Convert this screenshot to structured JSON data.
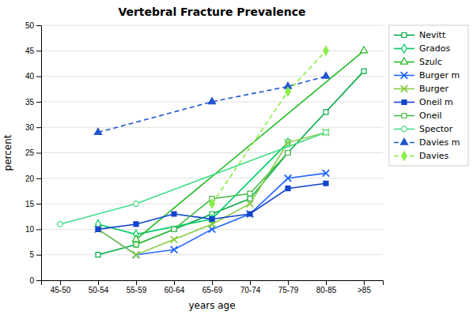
{
  "chart_data": {
    "type": "line",
    "title": "Vertebral Fracture Prevalence",
    "x_label": "years age",
    "y_label": "percent",
    "categories": [
      "45-50",
      "50-54",
      "55-59",
      "60-64",
      "65-69",
      "70-74",
      "75-79",
      "80-85",
      ">85"
    ],
    "ylim": [
      0,
      50
    ],
    "yticks": [
      0,
      5,
      10,
      15,
      20,
      25,
      30,
      35,
      40,
      45,
      50
    ],
    "grid": true,
    "legend": "right",
    "series": [
      {
        "name": "Nevitt",
        "color": "#00aa44",
        "marker": "square-open",
        "line_style": "solid",
        "values": [
          null,
          5,
          7,
          10,
          13,
          16,
          25,
          33,
          41
        ]
      },
      {
        "name": "Grados",
        "color": "#00cc66",
        "marker": "diamond-open",
        "line_style": "solid",
        "values": [
          null,
          11,
          9,
          null,
          12,
          null,
          27,
          null,
          null
        ]
      },
      {
        "name": "Szulc",
        "color": "#22bb22",
        "marker": "triangle-open",
        "line_style": "solid",
        "values": [
          null,
          null,
          8,
          null,
          null,
          null,
          null,
          null,
          45
        ]
      },
      {
        "name": "Burger m",
        "color": "#2266ff",
        "marker": "x",
        "line_style": "solid",
        "values": [
          null,
          10,
          5,
          6,
          10,
          13,
          20,
          21,
          null
        ]
      },
      {
        "name": "Burger",
        "color": "#88cc44",
        "marker": "x",
        "line_style": "solid",
        "values": [
          null,
          10,
          5,
          8,
          11,
          15,
          27,
          29,
          null
        ]
      },
      {
        "name": "Oneil m",
        "color": "#1144cc",
        "marker": "square",
        "line_style": "solid",
        "values": [
          null,
          10,
          11,
          13,
          12,
          13,
          18,
          19,
          null
        ]
      },
      {
        "name": "Oneil",
        "color": "#44bb44",
        "marker": "square-open",
        "line_style": "solid",
        "values": [
          null,
          null,
          7,
          10,
          16,
          17,
          25,
          null,
          null
        ]
      },
      {
        "name": "Spector",
        "color": "#44dd88",
        "marker": "circle-open",
        "line_style": "solid",
        "values": [
          11,
          null,
          15,
          null,
          null,
          null,
          null,
          29,
          null
        ]
      },
      {
        "name": "Davies m",
        "color": "#2255cc",
        "marker": "triangle",
        "line_style": "dashed",
        "values": [
          null,
          29,
          null,
          null,
          35,
          null,
          38,
          40,
          null
        ]
      },
      {
        "name": "Davies",
        "color": "#88ee44",
        "marker": "diamond",
        "line_style": "dashed",
        "values": [
          null,
          null,
          null,
          null,
          15,
          null,
          37,
          45,
          null
        ]
      }
    ]
  }
}
